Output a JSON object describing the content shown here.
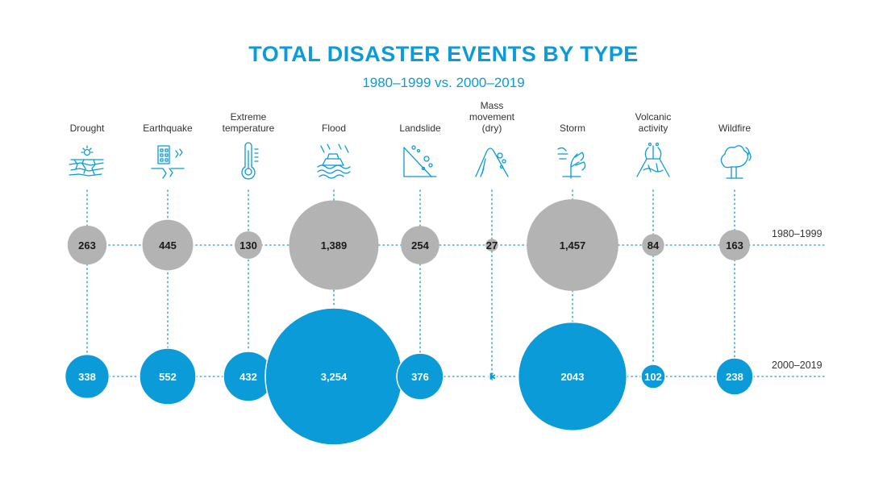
{
  "title": "TOTAL DISASTER EVENTS BY TYPE",
  "subtitle": "1980–1999 vs. 2000–2019",
  "colors": {
    "accent": "#0a9bd8",
    "gray": "#b3b3b3",
    "dots": "#3aa6d8",
    "text": "#333333"
  },
  "chart_data": {
    "type": "bubble",
    "title": "TOTAL DISASTER EVENTS BY TYPE",
    "subtitle": "1980–1999 vs. 2000–2019",
    "categories": [
      {
        "lines": [
          "Drought"
        ],
        "icon": "drought-icon"
      },
      {
        "lines": [
          "Earthquake"
        ],
        "icon": "earthquake-icon"
      },
      {
        "lines": [
          "Extreme",
          "temperature"
        ],
        "icon": "thermometer-icon"
      },
      {
        "lines": [
          "Flood"
        ],
        "icon": "flood-icon"
      },
      {
        "lines": [
          "Landslide"
        ],
        "icon": "landslide-icon"
      },
      {
        "lines": [
          "Mass",
          "movement",
          "(dry)"
        ],
        "icon": "mass-movement-icon"
      },
      {
        "lines": [
          "Storm"
        ],
        "icon": "storm-icon"
      },
      {
        "lines": [
          "Volcanic",
          "activity"
        ],
        "icon": "volcano-icon"
      },
      {
        "lines": [
          "Wildfire"
        ],
        "icon": "wildfire-icon"
      }
    ],
    "series": [
      {
        "name": "1980–1999",
        "color": "#b3b3b3",
        "text_color": "#1a1a1a",
        "values": [
          263,
          445,
          130,
          1389,
          254,
          27,
          1457,
          84,
          163
        ],
        "labels": [
          "263",
          "445",
          "130",
          "1,389",
          "254",
          "27",
          "1,457",
          "84",
          "163"
        ]
      },
      {
        "name": "2000–2019",
        "color": "#0a9bd8",
        "text_color": "#ffffff",
        "values": [
          338,
          552,
          432,
          3254,
          376,
          13,
          2043,
          102,
          238
        ],
        "labels": [
          "338",
          "552",
          "432",
          "3,254",
          "376",
          "13",
          "2043",
          "102",
          "238"
        ]
      }
    ]
  }
}
